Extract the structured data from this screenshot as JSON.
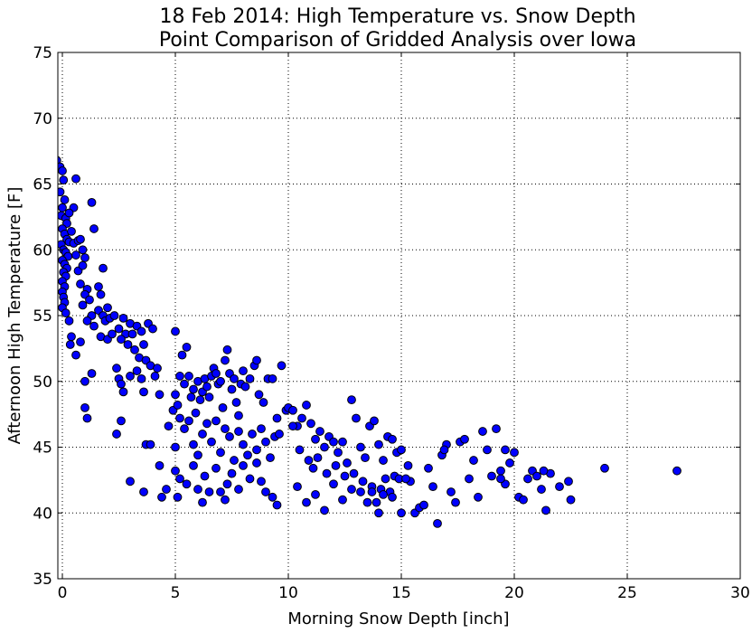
{
  "chart_data": {
    "type": "scatter",
    "title_line1": "18 Feb 2014: High Temperature  vs. Snow Depth",
    "title_line2": "Point Comparison of Gridded Analysis over Iowa",
    "xlabel": "Morning Snow Depth [inch]",
    "ylabel": "Afternoon High Temperature [F]",
    "xlim": [
      -0.2,
      30
    ],
    "ylim": [
      35,
      75
    ],
    "xticks": [
      0,
      5,
      10,
      15,
      20,
      25,
      30
    ],
    "yticks": [
      35,
      40,
      45,
      50,
      55,
      60,
      65,
      70,
      75
    ],
    "grid": true,
    "legend": "none",
    "marker_color": "#0000ff",
    "marker_edge": "#000000",
    "points": [
      [
        -0.25,
        66.8
      ],
      [
        -0.1,
        66.3
      ],
      [
        0.0,
        66.0
      ],
      [
        0.05,
        65.3
      ],
      [
        -0.1,
        64.4
      ],
      [
        0.0,
        63.2
      ],
      [
        0.1,
        63.8
      ],
      [
        -0.05,
        62.6
      ],
      [
        0.15,
        62.4
      ],
      [
        0.2,
        62.0
      ],
      [
        0.0,
        61.6
      ],
      [
        0.1,
        61.2
      ],
      [
        0.2,
        60.8
      ],
      [
        0.3,
        60.6
      ],
      [
        -0.05,
        60.4
      ],
      [
        0.05,
        60.0
      ],
      [
        0.15,
        59.8
      ],
      [
        0.25,
        59.5
      ],
      [
        0.0,
        59.2
      ],
      [
        0.1,
        58.9
      ],
      [
        0.2,
        58.6
      ],
      [
        0.05,
        58.3
      ],
      [
        0.15,
        58.0
      ],
      [
        0.0,
        57.6
      ],
      [
        0.1,
        57.2
      ],
      [
        0.0,
        56.8
      ],
      [
        0.05,
        56.4
      ],
      [
        0.1,
        56.0
      ],
      [
        0.0,
        55.6
      ],
      [
        0.15,
        55.2
      ],
      [
        0.3,
        54.6
      ],
      [
        0.4,
        53.4
      ],
      [
        0.35,
        52.8
      ],
      [
        0.6,
        52.0
      ],
      [
        0.5,
        60.5
      ],
      [
        0.7,
        60.7
      ],
      [
        0.8,
        60.8
      ],
      [
        0.9,
        60.0
      ],
      [
        0.6,
        59.6
      ],
      [
        0.7,
        58.4
      ],
      [
        0.9,
        58.8
      ],
      [
        1.0,
        59.4
      ],
      [
        0.8,
        57.4
      ],
      [
        1.1,
        57.0
      ],
      [
        1.0,
        56.6
      ],
      [
        1.2,
        56.2
      ],
      [
        0.9,
        55.8
      ],
      [
        1.3,
        55.0
      ],
      [
        1.1,
        54.6
      ],
      [
        1.4,
        54.2
      ],
      [
        0.6,
        65.4
      ],
      [
        0.5,
        63.2
      ],
      [
        0.3,
        62.8
      ],
      [
        0.4,
        61.4
      ],
      [
        1.3,
        63.6
      ],
      [
        1.4,
        61.6
      ],
      [
        0.8,
        53.0
      ],
      [
        1.0,
        50.0
      ],
      [
        1.3,
        50.6
      ],
      [
        1.0,
        48.0
      ],
      [
        1.1,
        47.2
      ],
      [
        1.6,
        57.2
      ],
      [
        1.7,
        56.6
      ],
      [
        1.8,
        58.6
      ],
      [
        1.6,
        55.4
      ],
      [
        1.8,
        55.0
      ],
      [
        2.0,
        55.6
      ],
      [
        1.9,
        54.6
      ],
      [
        2.1,
        54.8
      ],
      [
        2.3,
        55.0
      ],
      [
        1.7,
        53.4
      ],
      [
        2.0,
        53.2
      ],
      [
        2.2,
        53.6
      ],
      [
        2.5,
        54.0
      ],
      [
        2.7,
        54.8
      ],
      [
        2.8,
        53.6
      ],
      [
        3.0,
        54.4
      ],
      [
        2.6,
        53.2
      ],
      [
        2.9,
        52.8
      ],
      [
        3.1,
        53.6
      ],
      [
        3.3,
        54.2
      ],
      [
        3.5,
        53.8
      ],
      [
        3.2,
        52.4
      ],
      [
        3.6,
        52.8
      ],
      [
        3.8,
        54.4
      ],
      [
        4.0,
        54.0
      ],
      [
        3.4,
        51.8
      ],
      [
        3.7,
        51.6
      ],
      [
        3.9,
        51.2
      ],
      [
        4.2,
        51.0
      ],
      [
        2.4,
        51.0
      ],
      [
        2.5,
        50.2
      ],
      [
        2.6,
        49.8
      ],
      [
        2.7,
        49.2
      ],
      [
        3.0,
        50.4
      ],
      [
        3.3,
        50.8
      ],
      [
        3.5,
        50.2
      ],
      [
        3.6,
        49.2
      ],
      [
        4.1,
        50.4
      ],
      [
        4.3,
        49.0
      ],
      [
        2.4,
        46.0
      ],
      [
        2.6,
        47.0
      ],
      [
        3.7,
        45.2
      ],
      [
        3.9,
        45.2
      ],
      [
        3.0,
        42.4
      ],
      [
        3.6,
        41.6
      ],
      [
        4.3,
        43.6
      ],
      [
        4.4,
        41.2
      ],
      [
        4.6,
        41.8
      ],
      [
        4.7,
        46.6
      ],
      [
        4.9,
        47.8
      ],
      [
        5.0,
        49.0
      ],
      [
        5.1,
        48.2
      ],
      [
        5.2,
        50.4
      ],
      [
        5.4,
        49.8
      ],
      [
        5.3,
        52.0
      ],
      [
        5.0,
        53.8
      ],
      [
        5.5,
        52.6
      ],
      [
        5.6,
        50.4
      ],
      [
        5.7,
        48.8
      ],
      [
        5.8,
        49.4
      ],
      [
        5.9,
        47.6
      ],
      [
        6.0,
        50.0
      ],
      [
        6.1,
        48.6
      ],
      [
        6.2,
        49.2
      ],
      [
        6.3,
        50.2
      ],
      [
        6.4,
        49.6
      ],
      [
        6.5,
        48.8
      ],
      [
        6.6,
        50.4
      ],
      [
        6.7,
        51.0
      ],
      [
        6.8,
        50.6
      ],
      [
        6.9,
        49.8
      ],
      [
        7.0,
        50.0
      ],
      [
        7.1,
        48.0
      ],
      [
        7.2,
        51.6
      ],
      [
        7.3,
        52.4
      ],
      [
        7.4,
        50.6
      ],
      [
        7.5,
        49.4
      ],
      [
        7.6,
        50.2
      ],
      [
        7.7,
        48.4
      ],
      [
        7.8,
        47.4
      ],
      [
        7.9,
        49.8
      ],
      [
        8.0,
        50.8
      ],
      [
        8.1,
        49.6
      ],
      [
        8.3,
        50.2
      ],
      [
        8.5,
        51.2
      ],
      [
        8.6,
        51.6
      ],
      [
        8.7,
        49.0
      ],
      [
        8.9,
        48.4
      ],
      [
        9.1,
        50.2
      ],
      [
        9.3,
        50.2
      ],
      [
        9.5,
        47.2
      ],
      [
        9.7,
        51.2
      ],
      [
        9.9,
        47.8
      ],
      [
        5.0,
        45.0
      ],
      [
        5.2,
        47.2
      ],
      [
        5.4,
        46.4
      ],
      [
        5.6,
        47.0
      ],
      [
        5.8,
        45.2
      ],
      [
        6.0,
        44.4
      ],
      [
        6.2,
        46.0
      ],
      [
        6.4,
        46.8
      ],
      [
        6.6,
        45.4
      ],
      [
        6.8,
        47.0
      ],
      [
        7.0,
        44.6
      ],
      [
        7.2,
        46.4
      ],
      [
        7.4,
        45.8
      ],
      [
        7.6,
        44.0
      ],
      [
        7.8,
        46.2
      ],
      [
        8.0,
        45.2
      ],
      [
        8.2,
        44.4
      ],
      [
        8.4,
        46.0
      ],
      [
        8.6,
        44.8
      ],
      [
        8.8,
        46.4
      ],
      [
        9.0,
        45.4
      ],
      [
        9.2,
        44.2
      ],
      [
        9.4,
        45.8
      ],
      [
        9.6,
        46.0
      ],
      [
        5.0,
        43.2
      ],
      [
        5.2,
        42.6
      ],
      [
        5.5,
        42.2
      ],
      [
        5.8,
        43.6
      ],
      [
        6.0,
        41.8
      ],
      [
        6.3,
        42.8
      ],
      [
        6.5,
        41.6
      ],
      [
        6.8,
        43.4
      ],
      [
        7.0,
        41.6
      ],
      [
        7.3,
        42.2
      ],
      [
        7.5,
        43.0
      ],
      [
        7.8,
        41.8
      ],
      [
        8.0,
        43.6
      ],
      [
        8.3,
        42.6
      ],
      [
        8.6,
        43.8
      ],
      [
        8.8,
        42.4
      ],
      [
        9.0,
        41.6
      ],
      [
        9.3,
        41.2
      ],
      [
        9.5,
        40.6
      ],
      [
        5.1,
        41.2
      ],
      [
        6.2,
        40.8
      ],
      [
        7.2,
        41.0
      ],
      [
        10.0,
        48.0
      ],
      [
        10.2,
        47.8
      ],
      [
        10.4,
        46.6
      ],
      [
        10.6,
        47.2
      ],
      [
        10.8,
        48.2
      ],
      [
        11.0,
        46.8
      ],
      [
        11.2,
        45.6
      ],
      [
        11.4,
        46.2
      ],
      [
        11.6,
        45.0
      ],
      [
        11.8,
        45.8
      ],
      [
        12.0,
        45.4
      ],
      [
        12.2,
        44.6
      ],
      [
        12.4,
        45.4
      ],
      [
        12.6,
        43.8
      ],
      [
        12.8,
        48.6
      ],
      [
        13.0,
        47.2
      ],
      [
        13.2,
        45.0
      ],
      [
        13.4,
        44.2
      ],
      [
        13.6,
        46.6
      ],
      [
        13.8,
        47.0
      ],
      [
        14.0,
        45.2
      ],
      [
        14.2,
        44.0
      ],
      [
        14.4,
        45.8
      ],
      [
        14.6,
        45.6
      ],
      [
        14.8,
        44.6
      ],
      [
        15.0,
        44.8
      ],
      [
        10.2,
        46.6
      ],
      [
        10.5,
        44.8
      ],
      [
        10.9,
        44.0
      ],
      [
        11.1,
        43.4
      ],
      [
        11.3,
        44.2
      ],
      [
        11.7,
        43.0
      ],
      [
        12.1,
        43.6
      ],
      [
        12.5,
        42.8
      ],
      [
        12.9,
        43.0
      ],
      [
        13.3,
        42.4
      ],
      [
        13.7,
        42.0
      ],
      [
        14.1,
        41.8
      ],
      [
        14.3,
        42.6
      ],
      [
        14.5,
        41.6
      ],
      [
        14.7,
        42.8
      ],
      [
        14.9,
        42.6
      ],
      [
        10.4,
        42.0
      ],
      [
        10.8,
        40.8
      ],
      [
        11.2,
        41.4
      ],
      [
        11.6,
        40.2
      ],
      [
        12.0,
        42.2
      ],
      [
        12.4,
        41.0
      ],
      [
        12.8,
        41.8
      ],
      [
        13.2,
        41.6
      ],
      [
        13.5,
        40.8
      ],
      [
        13.7,
        41.6
      ],
      [
        13.9,
        40.8
      ],
      [
        14.0,
        40.0
      ],
      [
        14.2,
        41.4
      ],
      [
        14.6,
        41.2
      ],
      [
        15.0,
        40.0
      ],
      [
        15.4,
        42.4
      ],
      [
        15.6,
        40.0
      ],
      [
        15.8,
        40.4
      ],
      [
        16.0,
        40.6
      ],
      [
        16.2,
        43.4
      ],
      [
        16.4,
        42.0
      ],
      [
        16.6,
        39.2
      ],
      [
        16.8,
        44.4
      ],
      [
        17.0,
        45.2
      ],
      [
        17.2,
        41.6
      ],
      [
        17.4,
        40.8
      ],
      [
        17.6,
        45.4
      ],
      [
        17.8,
        45.6
      ],
      [
        18.0,
        42.6
      ],
      [
        18.2,
        44.0
      ],
      [
        18.4,
        41.2
      ],
      [
        18.6,
        46.2
      ],
      [
        18.8,
        44.8
      ],
      [
        19.0,
        42.8
      ],
      [
        19.2,
        46.4
      ],
      [
        19.4,
        43.2
      ],
      [
        19.6,
        42.2
      ],
      [
        19.8,
        43.8
      ],
      [
        20.0,
        44.6
      ],
      [
        20.2,
        41.2
      ],
      [
        20.4,
        41.0
      ],
      [
        20.6,
        42.6
      ],
      [
        20.8,
        43.2
      ],
      [
        21.0,
        42.8
      ],
      [
        21.2,
        41.8
      ],
      [
        21.4,
        40.2
      ],
      [
        21.6,
        43.0
      ],
      [
        22.0,
        42.0
      ],
      [
        22.4,
        42.4
      ],
      [
        22.5,
        41.0
      ],
      [
        24.0,
        43.4
      ],
      [
        27.2,
        43.2
      ],
      [
        19.4,
        42.6
      ],
      [
        21.3,
        43.2
      ],
      [
        15.2,
        42.6
      ],
      [
        15.3,
        43.6
      ],
      [
        16.9,
        44.8
      ],
      [
        19.6,
        44.8
      ]
    ]
  }
}
